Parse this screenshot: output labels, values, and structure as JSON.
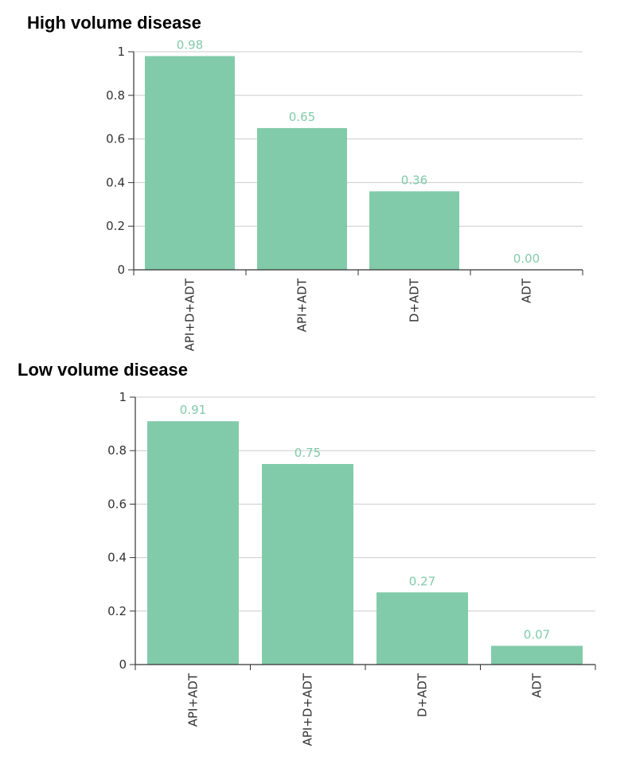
{
  "colors": {
    "bar": "#82CBAA",
    "label": "#82CBAA",
    "grid": "#CCCCCC",
    "axis": "#333333"
  },
  "chart_data": [
    {
      "type": "bar",
      "title": "High volume disease",
      "categories": [
        "API+D+ADT",
        "API+ADT",
        "D+ADT",
        "ADT"
      ],
      "values": [
        0.98,
        0.65,
        0.36,
        0.0
      ],
      "data_labels": [
        "0.98",
        "0.65",
        "0.36",
        "0.00"
      ],
      "ylim": [
        0,
        1
      ],
      "yticks": [
        0,
        0.2,
        0.4,
        0.6,
        0.8,
        1
      ],
      "ytick_labels": [
        "0",
        "0.2",
        "0.4",
        "0.6",
        "0.8",
        "1"
      ],
      "grid": true
    },
    {
      "type": "bar",
      "title": "Low volume disease",
      "categories": [
        "API+ADT",
        "API+D+ADT",
        "D+ADT",
        "ADT"
      ],
      "values": [
        0.91,
        0.75,
        0.27,
        0.07
      ],
      "data_labels": [
        "0.91",
        "0.75",
        "0.27",
        "0.07"
      ],
      "ylim": [
        0,
        1
      ],
      "yticks": [
        0,
        0.2,
        0.4,
        0.6,
        0.8,
        1
      ],
      "ytick_labels": [
        "0",
        "0.2",
        "0.4",
        "0.6",
        "0.8",
        "1"
      ],
      "grid": true
    }
  ]
}
